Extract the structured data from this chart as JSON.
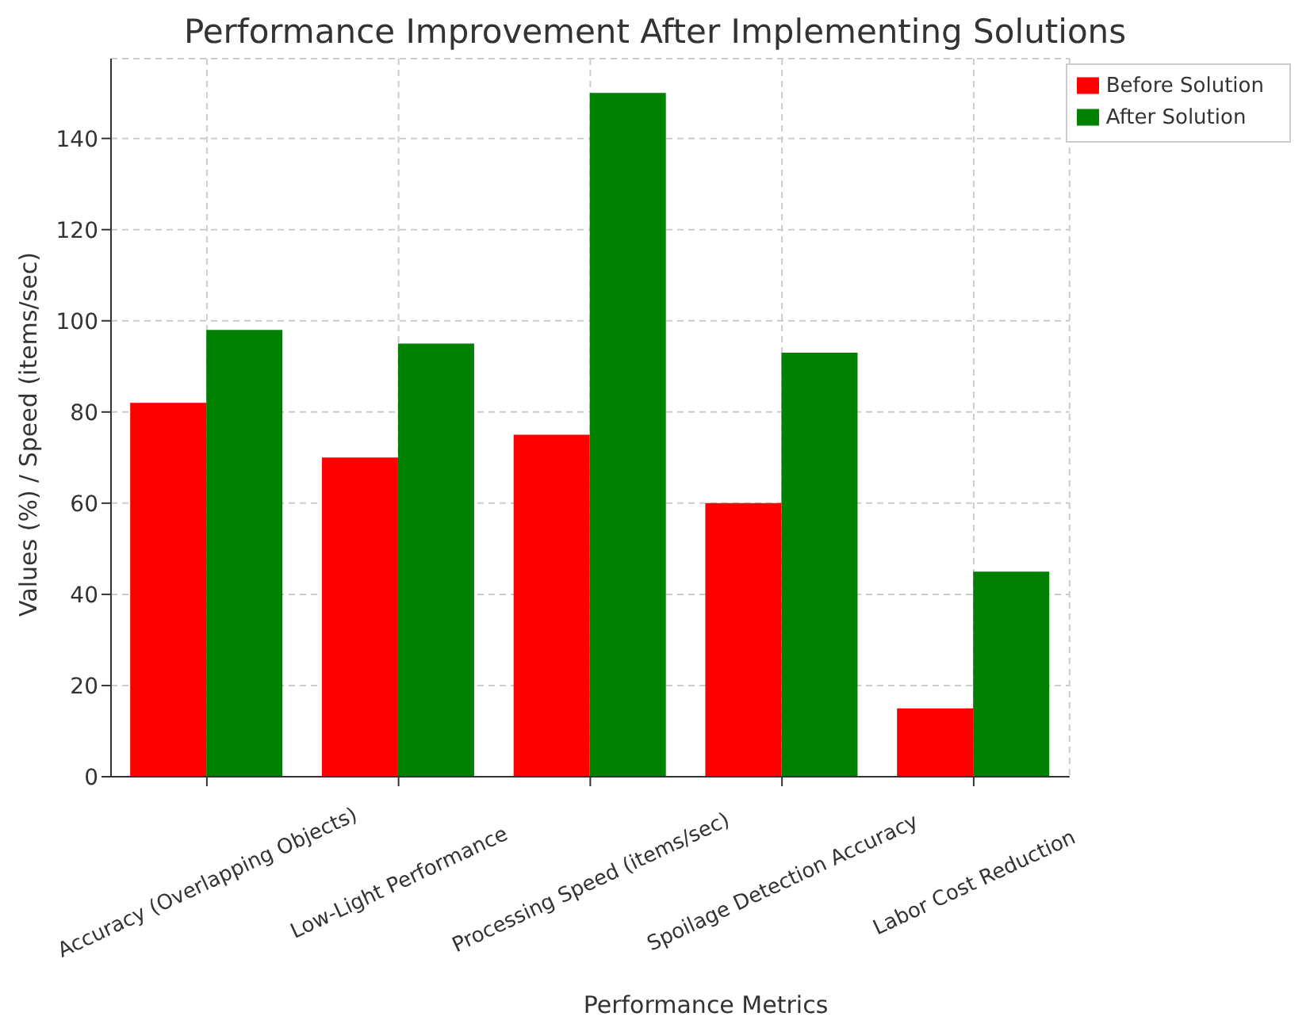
{
  "chart_data": {
    "type": "bar",
    "title": "Performance Improvement After Implementing Solutions",
    "xlabel": "Performance Metrics",
    "ylabel": "Values (%) / Speed (items/sec)",
    "categories": [
      "Accuracy (Overlapping Objects)",
      "Low-Light Performance",
      "Processing Speed (items/sec)",
      "Spoilage Detection Accuracy",
      "Labor Cost Reduction"
    ],
    "series": [
      {
        "name": "Before Solution",
        "color": "#ff0000",
        "values": [
          82,
          70,
          75,
          60,
          15
        ]
      },
      {
        "name": "After Solution",
        "color": "#008000",
        "values": [
          98,
          95,
          150,
          93,
          45
        ]
      }
    ],
    "ylim": [
      0,
      157.5
    ],
    "yticks": [
      0,
      20,
      40,
      60,
      80,
      100,
      120,
      140
    ],
    "grid": true,
    "legend": "top right"
  }
}
